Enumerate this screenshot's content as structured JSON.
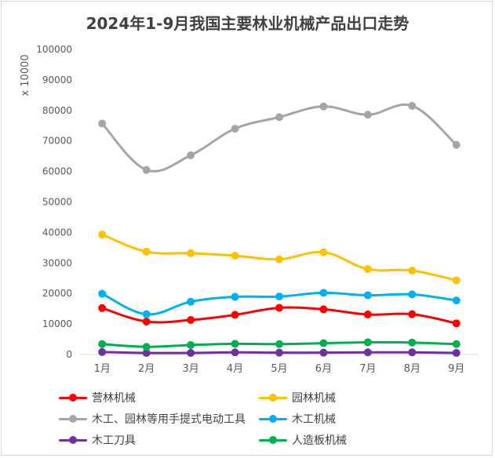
{
  "chart_data": {
    "type": "line",
    "title": "2024年1-9月我国主要林业机械产品出口走势",
    "ylabel": "x 10000",
    "xlabel": "",
    "categories": [
      "1月",
      "2月",
      "3月",
      "4月",
      "5月",
      "6月",
      "7月",
      "8月",
      "9月"
    ],
    "ylim": [
      0,
      100000
    ],
    "yticks": [
      "0",
      "10000",
      "20000",
      "30000",
      "40000",
      "50000",
      "60000",
      "70000",
      "80000",
      "90000",
      "100000"
    ],
    "grid": false,
    "legend_position": "bottom",
    "series": [
      {
        "name": "营林机械",
        "color": "#ff0000",
        "values": [
          15200,
          10800,
          11300,
          13000,
          15300,
          14800,
          13100,
          13200,
          10200
        ]
      },
      {
        "name": "园林机械",
        "color": "#ffc000",
        "values": [
          39300,
          33700,
          33200,
          32400,
          31200,
          33500,
          28000,
          27500,
          24300
        ]
      },
      {
        "name": "木工、园林等用手提式电动工具",
        "color": "#a5a5a5",
        "values": [
          75700,
          60500,
          65300,
          74000,
          77800,
          81300,
          78600,
          81500,
          68700
        ]
      },
      {
        "name": "木工机械",
        "color": "#00b0f0",
        "values": [
          19900,
          13200,
          17300,
          18900,
          19000,
          20200,
          19400,
          19700,
          17700
        ]
      },
      {
        "name": "木工刀具",
        "color": "#7030a0",
        "values": [
          800,
          500,
          500,
          700,
          600,
          600,
          700,
          700,
          500
        ]
      },
      {
        "name": "人造板机械",
        "color": "#00b050",
        "values": [
          3400,
          2500,
          3100,
          3500,
          3400,
          3700,
          4000,
          3900,
          3400
        ]
      }
    ]
  }
}
